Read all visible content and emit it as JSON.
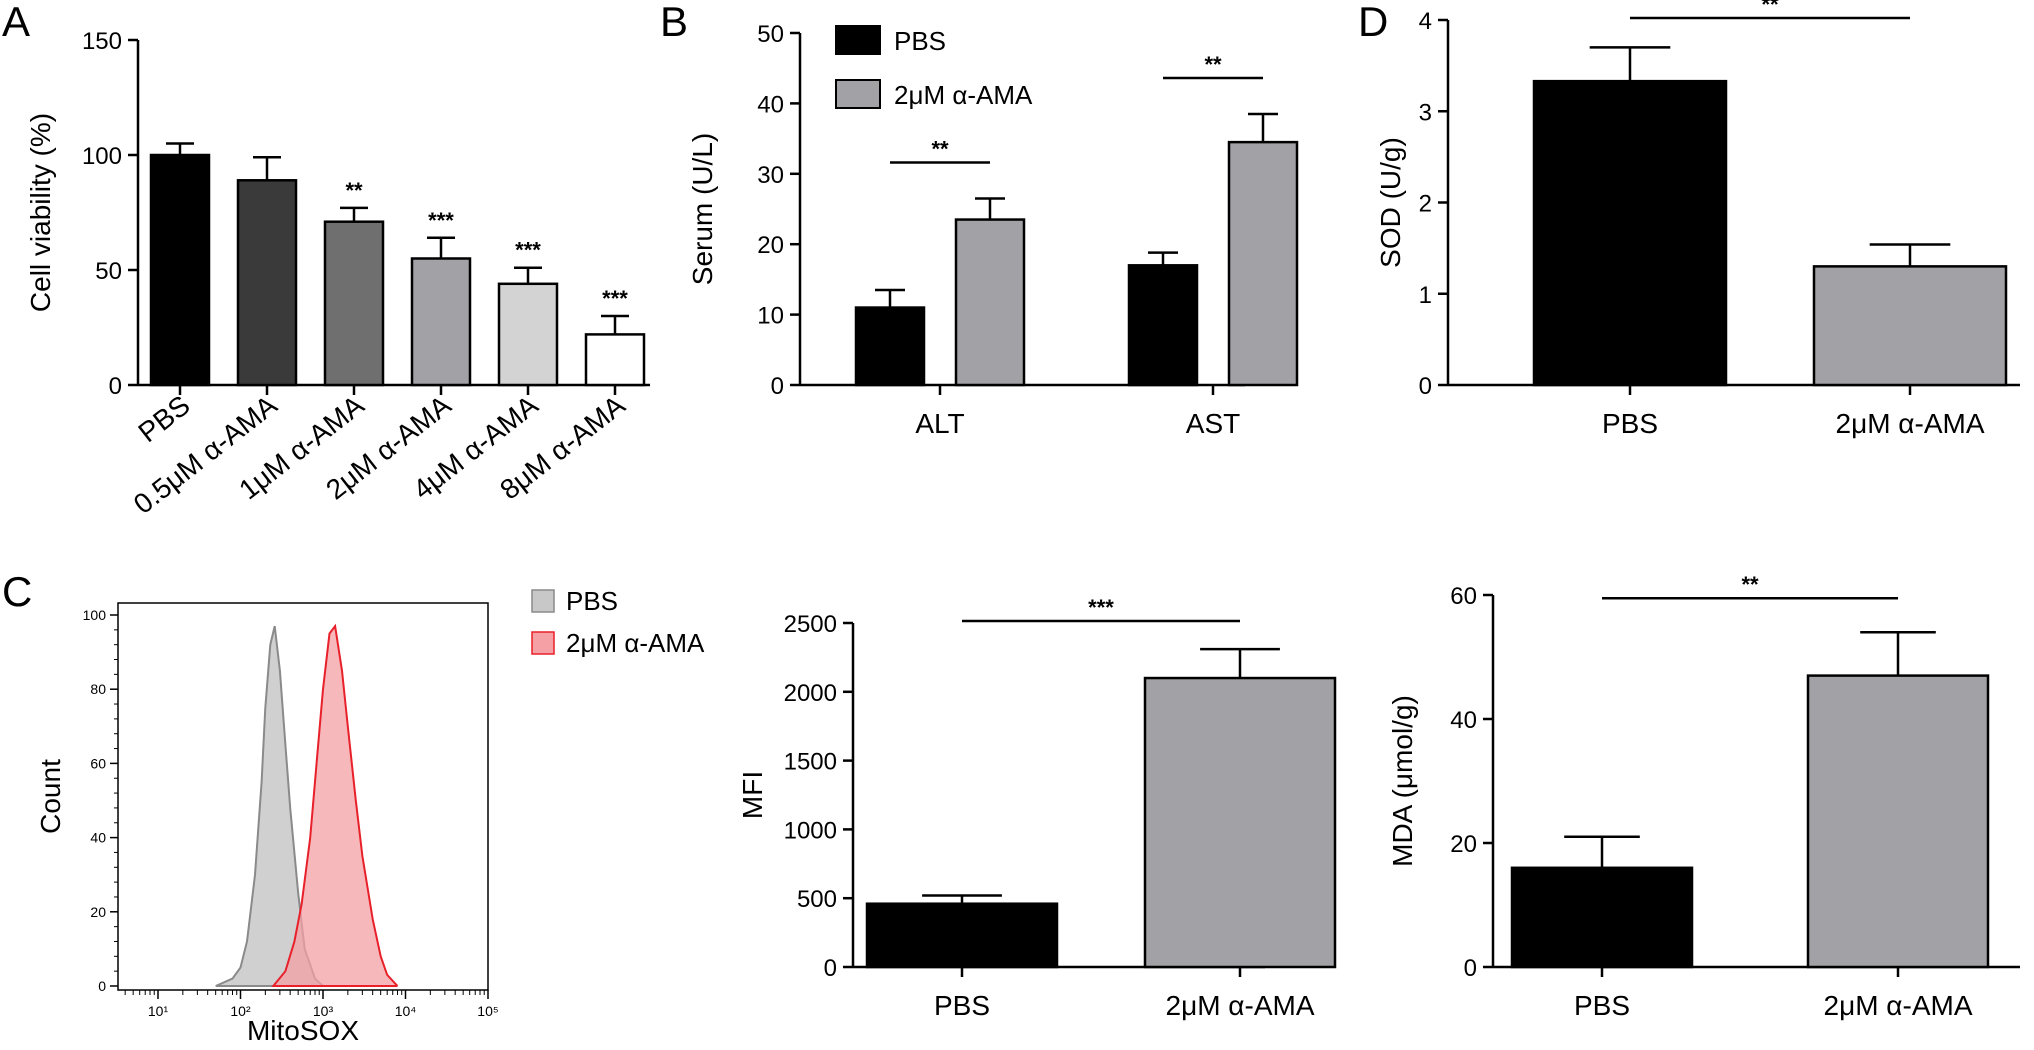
{
  "panel_labels": {
    "a": "A",
    "b": "B",
    "c": "C",
    "d": "D"
  },
  "colors": {
    "black": "#000000",
    "dark": "#3a3a3a",
    "mid": "#6f6f6f",
    "gray": "#a2a2a6",
    "light": "#d3d3d3",
    "white": "#ffffff",
    "hist_pbs": "#c8c8c8",
    "hist_pbs_line": "#8a8a8a",
    "hist_ama": "#f4a0a4",
    "hist_ama_line": "#e8202a"
  },
  "chart_data": [
    {
      "id": "A",
      "type": "bar",
      "ylabel": "Cell viability (%)",
      "ylim": [
        0,
        150
      ],
      "yticks": [
        0,
        50,
        100,
        150
      ],
      "categories": [
        "PBS",
        "0.5μM α-AMA",
        "1μM α-AMA",
        "2μM α-AMA",
        "4μM α-AMA",
        "8μM α-AMA"
      ],
      "values": [
        100,
        89,
        71,
        55,
        44,
        22
      ],
      "errors": [
        5,
        10,
        6,
        9,
        7,
        8
      ],
      "significance": [
        "",
        "",
        "**",
        "***",
        "***",
        "***"
      ],
      "bar_colors": [
        "black",
        "dark",
        "mid",
        "gray",
        "light",
        "white"
      ]
    },
    {
      "id": "B",
      "type": "bar",
      "ylabel": "Serum (U/L)",
      "ylim": [
        0,
        50
      ],
      "yticks": [
        0,
        10,
        20,
        30,
        40,
        50
      ],
      "categories": [
        "ALT",
        "AST"
      ],
      "series": [
        {
          "name": "PBS",
          "values": [
            11,
            17
          ],
          "errors": [
            2.5,
            1.8
          ]
        },
        {
          "name": "2μM α-AMA",
          "values": [
            23.5,
            34.5
          ],
          "errors": [
            3,
            4
          ]
        }
      ],
      "significance": [
        "**",
        "**"
      ],
      "legend": "top-left"
    },
    {
      "id": "D1",
      "type": "bar",
      "ylabel": "SOD (U/g)",
      "ylim": [
        0,
        4
      ],
      "yticks": [
        0,
        1,
        2,
        3,
        4
      ],
      "categories": [
        "PBS",
        "2μM α-AMA"
      ],
      "values": [
        3.33,
        1.3
      ],
      "errors": [
        0.37,
        0.24
      ],
      "significance": "**"
    },
    {
      "id": "C1",
      "type": "area",
      "xlabel": "MitoSOX",
      "ylabel": "Count",
      "xscale": "log",
      "xticks": [
        "10¹",
        "10²",
        "10³",
        "10⁴",
        "10⁵"
      ],
      "ylim": [
        0,
        100
      ],
      "yticks": [
        0,
        20,
        40,
        60,
        80,
        100
      ],
      "series": [
        {
          "name": "PBS",
          "x": [
            50,
            80,
            100,
            120,
            150,
            180,
            200,
            230,
            260,
            300,
            350,
            400,
            500,
            600,
            800,
            1000
          ],
          "y": [
            0,
            2,
            5,
            12,
            30,
            55,
            75,
            92,
            97,
            85,
            65,
            48,
            25,
            10,
            2,
            0
          ]
        },
        {
          "name": "2μM α-AMA",
          "x": [
            250,
            350,
            450,
            550,
            700,
            850,
            1000,
            1200,
            1400,
            1700,
            2000,
            2500,
            3000,
            4000,
            5000,
            6000,
            8000
          ],
          "y": [
            0,
            4,
            12,
            22,
            40,
            62,
            80,
            95,
            97,
            85,
            70,
            50,
            35,
            18,
            8,
            3,
            0
          ]
        }
      ],
      "legend": "top-right"
    },
    {
      "id": "C2",
      "type": "bar",
      "ylabel": "MFI",
      "ylim": [
        0,
        2500
      ],
      "yticks": [
        0,
        500,
        1000,
        1500,
        2000,
        2500
      ],
      "categories": [
        "PBS",
        "2μM α-AMA"
      ],
      "values": [
        460,
        2100
      ],
      "errors": [
        60,
        210
      ],
      "significance": "***"
    },
    {
      "id": "D2",
      "type": "bar",
      "ylabel": "MDA (μmol/g)",
      "ylim": [
        0,
        60
      ],
      "yticks": [
        0,
        20,
        40,
        60
      ],
      "categories": [
        "PBS",
        "2μM α-AMA"
      ],
      "values": [
        16,
        47
      ],
      "errors": [
        5,
        7
      ],
      "significance": "**"
    }
  ]
}
